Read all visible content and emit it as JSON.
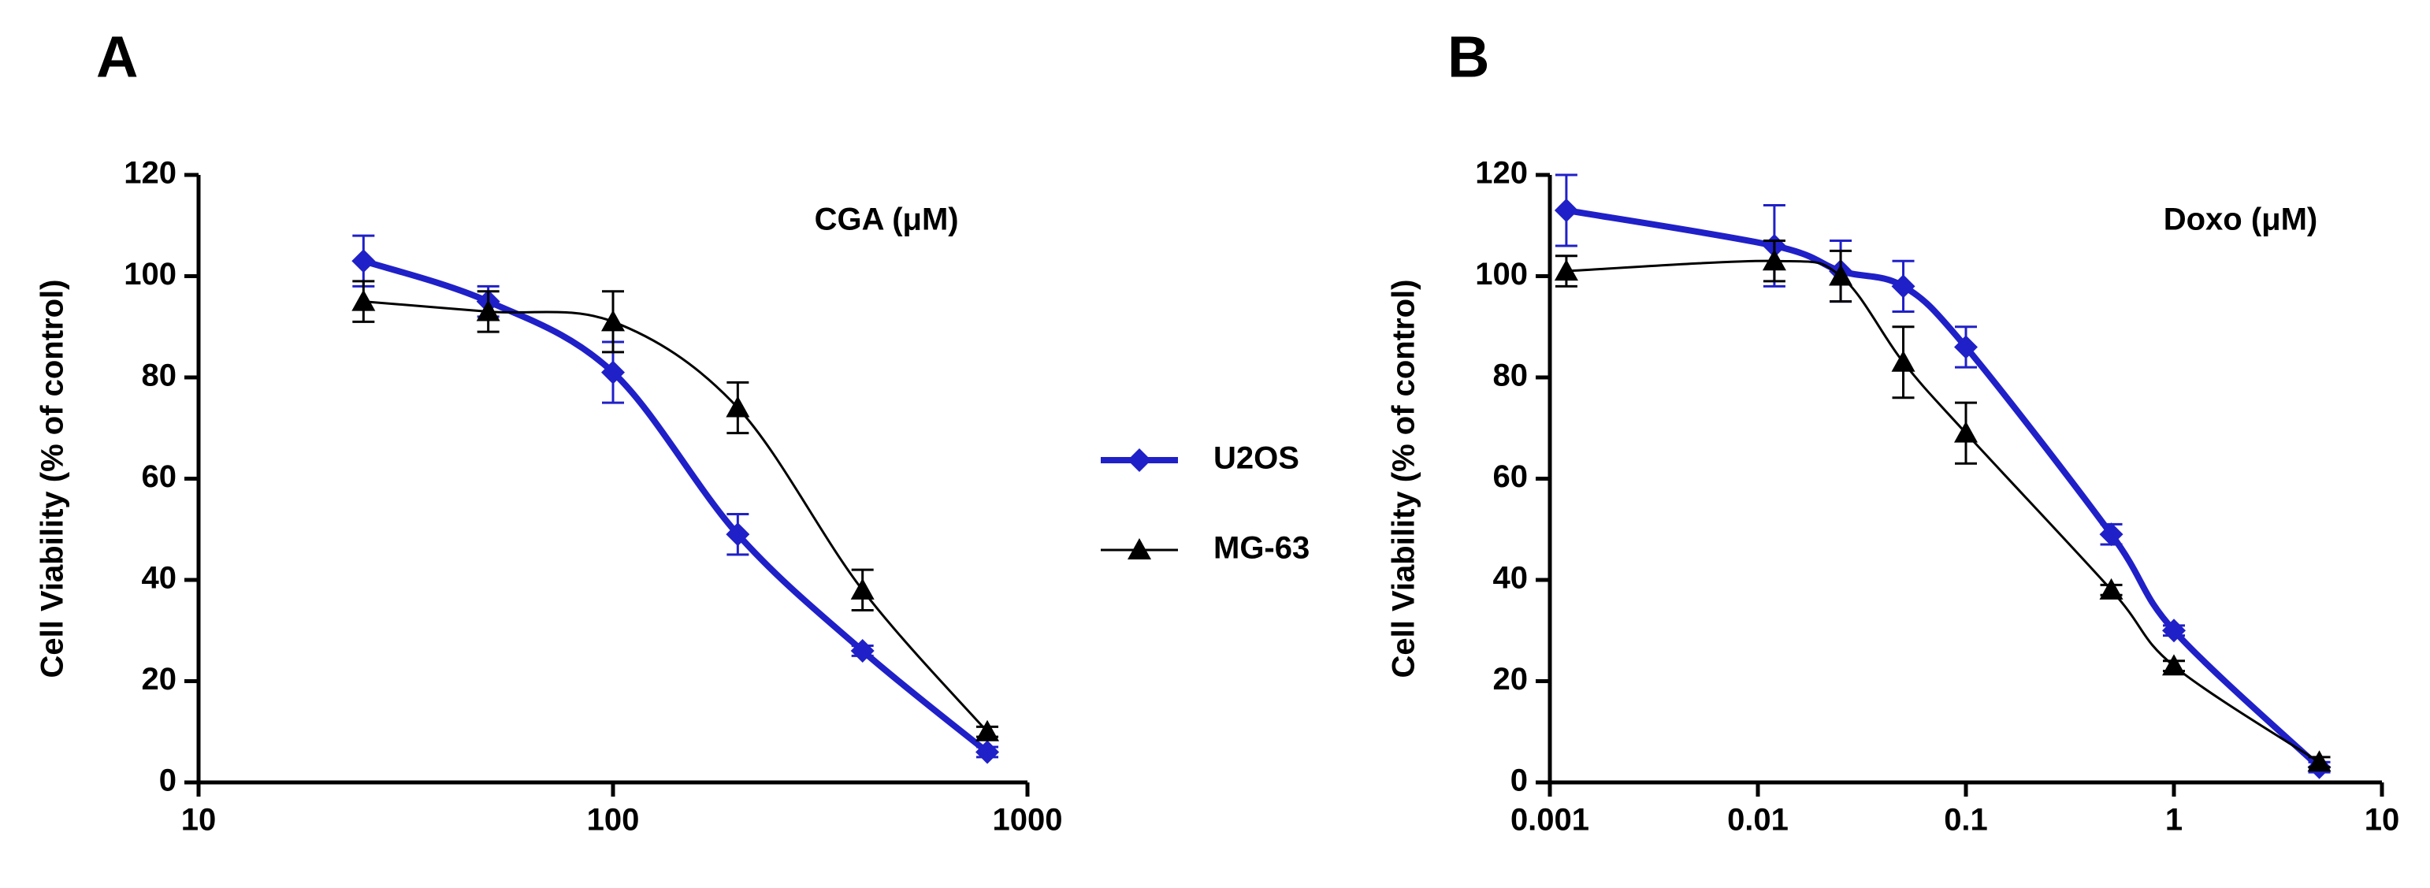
{
  "chart_data": [
    {
      "type": "scatter",
      "panel_label": "A",
      "annotation": "CGA (μM)",
      "ylabel": "Cell Viability (% of control)",
      "xscale": "log",
      "xlim": [
        10,
        1000
      ],
      "xticks": [
        10,
        100,
        1000
      ],
      "ylim": [
        0,
        120
      ],
      "yticks": [
        0,
        20,
        40,
        60,
        80,
        100,
        120
      ],
      "series": [
        {
          "name": "U2OS",
          "color": "#2020c8",
          "marker": "diamond",
          "x": [
            25,
            50,
            100,
            200,
            400,
            800
          ],
          "values": [
            103,
            95,
            81,
            49,
            26,
            6
          ],
          "errors": [
            5,
            3,
            6,
            4,
            1,
            1
          ]
        },
        {
          "name": "MG-63",
          "color": "#000000",
          "marker": "triangle",
          "x": [
            25,
            50,
            100,
            200,
            400,
            800
          ],
          "values": [
            95,
            93,
            91,
            74,
            38,
            10
          ],
          "errors": [
            4,
            4,
            6,
            5,
            4,
            1
          ]
        }
      ]
    },
    {
      "type": "scatter",
      "panel_label": "B",
      "annotation": "Doxo (μM)",
      "ylabel": "Cell Viability (% of control)",
      "xscale": "log",
      "xlim": [
        0.001,
        10
      ],
      "xticks": [
        0.001,
        0.01,
        0.1,
        1,
        10
      ],
      "ylim": [
        0,
        120
      ],
      "yticks": [
        0,
        20,
        40,
        60,
        80,
        100,
        120
      ],
      "series": [
        {
          "color": "#2020c8",
          "marker": "diamond",
          "x": [
            0.0012,
            0.012,
            0.025,
            0.05,
            0.1,
            0.5,
            1,
            5
          ],
          "values": [
            113,
            106,
            101,
            98,
            86,
            49,
            30,
            3
          ],
          "errors": [
            7,
            8,
            6,
            5,
            4,
            2,
            1,
            1
          ]
        },
        {
          "color": "#000000",
          "marker": "triangle",
          "x": [
            0.0012,
            0.012,
            0.025,
            0.05,
            0.1,
            0.5,
            1,
            5
          ],
          "values": [
            101,
            103,
            100,
            83,
            69,
            38,
            23,
            4
          ],
          "errors": [
            3,
            4,
            5,
            7,
            6,
            1,
            1,
            1
          ]
        }
      ]
    }
  ]
}
